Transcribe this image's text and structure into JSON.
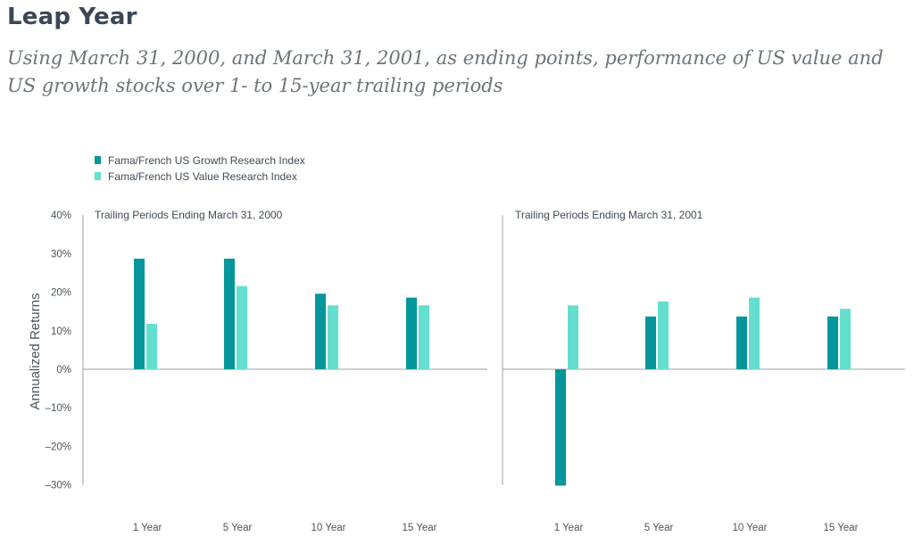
{
  "title": "Leap Year",
  "subtitle": "Using March 31, 2000, and March 31, 2001, as ending points, performance of US value and US growth stocks over 1- to 15-year trailing periods",
  "chart_data": {
    "type": "bar",
    "ylabel": "Annualized  Returns",
    "ylim": [
      -30,
      40
    ],
    "yticks": [
      40,
      30,
      20,
      10,
      0,
      -10,
      -20,
      -30
    ],
    "ytick_labels": [
      "40%",
      "30%",
      "20%",
      "10%",
      "0%",
      "–10%",
      "–20%",
      "–30%"
    ],
    "categories": [
      "1 Year",
      "5 Year",
      "10 Year",
      "15 Year"
    ],
    "legend": [
      {
        "name": "Fama/French US Growth Research Index",
        "color": "#05969b"
      },
      {
        "name": "Fama/French US Value Research Index",
        "color": "#64dfcf"
      }
    ],
    "panels": [
      {
        "title": "Trailing Periods Ending March 31, 2000",
        "series": [
          {
            "name": "Fama/French US Growth Research Index",
            "values": [
              28.7,
              28.7,
              19.6,
              18.6
            ]
          },
          {
            "name": "Fama/French US Value Research Index",
            "values": [
              11.8,
              21.6,
              16.6,
              16.6
            ]
          }
        ]
      },
      {
        "title": "Trailing Periods Ending March 31, 2001",
        "series": [
          {
            "name": "Fama/French US Growth Research Index",
            "values": [
              -30.2,
              13.7,
              13.7,
              13.7
            ]
          },
          {
            "name": "Fama/French US Value Research Index",
            "values": [
              16.6,
              17.6,
              18.6,
              15.7
            ]
          }
        ]
      }
    ]
  }
}
